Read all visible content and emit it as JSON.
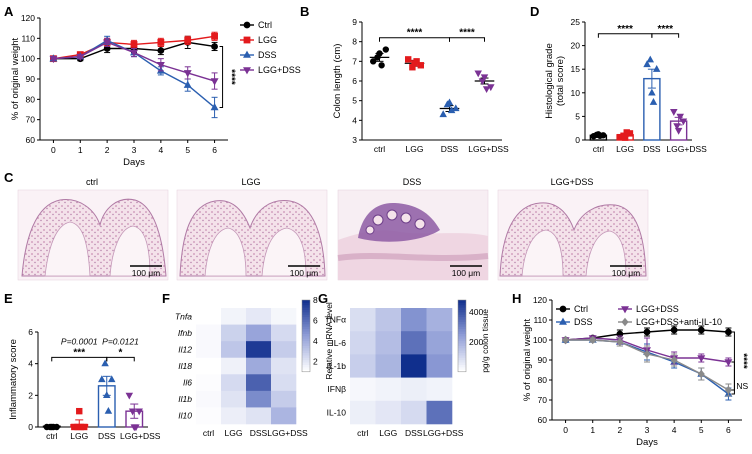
{
  "colors": {
    "Ctrl": "#000000",
    "LGG": "#e31a1c",
    "DSS": "#2b5fb0",
    "LGG+DSS": "#7b3294",
    "anti": "#8a8a8a",
    "heat_lo": "#ffffff",
    "heat_hi": "#0b2a8a",
    "tissue_pink": "#e9b9cf",
    "tissue_purple": "#8d5aa3",
    "tissue_bg": "#f7eef3"
  },
  "chart_data": [
    {
      "panel": "A",
      "type": "line",
      "ylabel": "% of original weight",
      "xlabel": "Days",
      "x": [
        0,
        1,
        2,
        3,
        4,
        5,
        6
      ],
      "xlim": [
        -0.5,
        6.5
      ],
      "ylim": [
        60,
        120
      ],
      "yticks": [
        60,
        70,
        80,
        90,
        100,
        110,
        120
      ],
      "xticks": [
        0,
        1,
        2,
        3,
        4,
        5,
        6
      ],
      "legend": [
        "Ctrl",
        "LGG",
        "DSS",
        "LGG+DSS"
      ],
      "series": [
        {
          "name": "Ctrl",
          "values": [
            100,
            100,
            105,
            105,
            104,
            108,
            106
          ],
          "err": [
            0.5,
            1,
            2,
            2,
            2,
            3,
            2
          ],
          "marker": "circle"
        },
        {
          "name": "LGG",
          "values": [
            100,
            102,
            108,
            107,
            108,
            109,
            111
          ],
          "err": [
            0.5,
            1,
            2,
            2,
            2,
            2,
            2
          ],
          "marker": "square"
        },
        {
          "name": "DSS",
          "values": [
            100,
            101,
            109,
            103,
            94,
            87,
            76
          ],
          "err": [
            0.5,
            1,
            2,
            2,
            2,
            3,
            5
          ],
          "marker": "triangle"
        },
        {
          "name": "LGG+DSS",
          "values": [
            100,
            101,
            108,
            103,
            97,
            93,
            89
          ],
          "err": [
            0.5,
            1,
            2,
            2,
            3,
            3,
            4
          ],
          "marker": "invtriangle"
        }
      ],
      "significance": "****"
    },
    {
      "panel": "B",
      "type": "scatter",
      "ylabel": "Colon length (cm)",
      "ylim": [
        3,
        9
      ],
      "yticks": [
        3,
        4,
        5,
        6,
        7,
        8,
        9
      ],
      "categories": [
        "ctrl",
        "LGG",
        "DSS",
        "LGG+DSS"
      ],
      "groups": [
        {
          "name": "ctrl",
          "mean": 7.2,
          "sem": 0.2,
          "points": [
            7.0,
            7.6,
            7.2,
            6.8,
            7.4
          ],
          "marker": "circle"
        },
        {
          "name": "LGG",
          "mean": 6.9,
          "sem": 0.15,
          "points": [
            7.1,
            6.8,
            6.7,
            7.0,
            6.9
          ],
          "marker": "square"
        },
        {
          "name": "DSS",
          "mean": 4.6,
          "sem": 0.15,
          "points": [
            4.3,
            4.6,
            4.8,
            4.5,
            4.9
          ],
          "marker": "triangle"
        },
        {
          "name": "LGG+DSS",
          "mean": 6.0,
          "sem": 0.15,
          "points": [
            6.4,
            5.7,
            6.0,
            5.6,
            6.2
          ],
          "marker": "invtriangle"
        }
      ],
      "brackets": [
        {
          "from": 0,
          "to": 2,
          "label": "****"
        },
        {
          "from": 2,
          "to": 3,
          "label": "****"
        }
      ]
    },
    {
      "panel": "D",
      "type": "bar",
      "ylabel": "Histological grade",
      "ylabel2": "(total score)",
      "ylim": [
        0,
        25
      ],
      "yticks": [
        0,
        5,
        10,
        15,
        20,
        25
      ],
      "categories": [
        "ctrl",
        "LGG",
        "DSS",
        "LGG+DSS"
      ],
      "groups": [
        {
          "name": "ctrl",
          "mean": 1.0,
          "sem": 0.2,
          "points": [
            0.8,
            1.0,
            1.1,
            0.9,
            1.2
          ],
          "marker": "circle"
        },
        {
          "name": "LGG",
          "mean": 1.1,
          "sem": 0.3,
          "points": [
            0.6,
            1.4,
            0.9,
            1.6,
            0.5
          ],
          "marker": "square"
        },
        {
          "name": "DSS",
          "mean": 13.0,
          "sem": 2.0,
          "points": [
            16,
            15,
            17,
            8,
            10
          ],
          "marker": "triangle"
        },
        {
          "name": "LGG+DSS",
          "mean": 4.0,
          "sem": 0.8,
          "points": [
            6,
            4,
            3,
            5,
            2
          ],
          "marker": "invtriangle"
        }
      ],
      "brackets": [
        {
          "from": 0,
          "to": 2,
          "label": "****"
        },
        {
          "from": 2,
          "to": 3,
          "label": "****"
        }
      ]
    },
    {
      "panel": "E",
      "type": "bar",
      "ylabel": "Inflammatory score",
      "ylim": [
        0,
        6
      ],
      "yticks": [
        0,
        2,
        4,
        6
      ],
      "categories": [
        "ctrl",
        "LGG",
        "DSS",
        "LGG+DSS"
      ],
      "groups": [
        {
          "name": "ctrl",
          "mean": 0.05,
          "sem": 0.05,
          "points": [
            0,
            0,
            0,
            0,
            0
          ],
          "marker": "circle"
        },
        {
          "name": "LGG",
          "mean": 0.15,
          "sem": 0.3,
          "points": [
            0,
            0,
            0,
            0,
            1
          ],
          "marker": "square"
        },
        {
          "name": "DSS",
          "mean": 2.6,
          "sem": 0.6,
          "points": [
            3,
            3,
            4,
            1,
            2
          ],
          "marker": "triangle"
        },
        {
          "name": "LGG+DSS",
          "mean": 1.0,
          "sem": 0.45,
          "points": [
            2,
            1,
            1,
            0,
            0
          ],
          "marker": "invtriangle"
        }
      ],
      "brackets": [
        {
          "from": 0,
          "to": 2,
          "label": "***"
        },
        {
          "from": 2,
          "to": 3,
          "label": "*"
        }
      ],
      "pvalues": [
        "P=0.0001",
        "P=0.0121"
      ]
    },
    {
      "panel": "F",
      "type": "heatmap",
      "rows": [
        "Tnfa",
        "Ifnb",
        "Il12",
        "Il18",
        "Il6",
        "Il1b",
        "Il10"
      ],
      "columns": [
        "ctrl",
        "LGG",
        "DSS",
        "LGG+DSS"
      ],
      "values": [
        [
          1.0,
          1.4,
          1.8,
          1.3
        ],
        [
          1.2,
          2.6,
          4.2,
          2.3
        ],
        [
          1.2,
          3.0,
          7.5,
          2.8
        ],
        [
          1.0,
          1.5,
          4.0,
          2.0
        ],
        [
          1.1,
          2.3,
          6.3,
          2.2
        ],
        [
          1.2,
          2.0,
          5.0,
          2.8
        ],
        [
          1.1,
          1.6,
          2.0,
          3.6
        ]
      ],
      "colorbar": {
        "label": "Relative mRNA level",
        "min": 1,
        "max": 8,
        "ticks": [
          2,
          4,
          6,
          8
        ]
      }
    },
    {
      "panel": "G",
      "type": "heatmap",
      "rows": [
        "TNFα",
        "IL-6",
        "IL-1b",
        "IFNβ",
        "IL-10"
      ],
      "columns": [
        "ctrl",
        "LGG",
        "DSS",
        "LGG+DSS"
      ],
      "values": [
        [
          80,
          140,
          260,
          190
        ],
        [
          100,
          160,
          330,
          220
        ],
        [
          120,
          180,
          470,
          250
        ],
        [
          20,
          30,
          40,
          30
        ],
        [
          40,
          60,
          90,
          330
        ]
      ],
      "colorbar": {
        "label": "pg/g colon tissue",
        "min": 0,
        "max": 480,
        "ticks": [
          200,
          400
        ]
      }
    },
    {
      "panel": "H",
      "type": "line",
      "ylabel": "% of original weight",
      "xlabel": "Days",
      "x": [
        0,
        1,
        2,
        3,
        4,
        5,
        6
      ],
      "xlim": [
        -0.5,
        6.5
      ],
      "ylim": [
        60,
        120
      ],
      "yticks": [
        60,
        70,
        80,
        90,
        100,
        110,
        120
      ],
      "xticks": [
        0,
        1,
        2,
        3,
        4,
        5,
        6
      ],
      "legend": [
        "Ctrl",
        "DSS",
        "LGG+DSS",
        "LGG+DSS+anti-IL-10"
      ],
      "series": [
        {
          "name": "Ctrl",
          "values": [
            100,
            101,
            103,
            104,
            105,
            105,
            104
          ],
          "err": [
            0.5,
            1,
            2,
            2,
            2,
            2,
            2
          ],
          "marker": "circle"
        },
        {
          "name": "DSS",
          "values": [
            100,
            100,
            99,
            94,
            89,
            83,
            73
          ],
          "err": [
            0.5,
            1,
            2,
            4,
            3,
            3,
            3
          ],
          "marker": "triangle"
        },
        {
          "name": "LGG+DSS",
          "values": [
            100,
            101,
            100,
            95,
            91,
            91,
            89
          ],
          "err": [
            0.5,
            1,
            2,
            6,
            3,
            2,
            2
          ],
          "marker": "invtriangle"
        },
        {
          "name": "LGG+DSS+anti-IL-10",
          "values": [
            100,
            100,
            99,
            93,
            90,
            83,
            75
          ],
          "err": [
            0.5,
            1,
            2,
            4,
            3,
            3,
            3
          ],
          "marker": "diamond"
        }
      ],
      "significance": [
        "****",
        "NS"
      ]
    }
  ],
  "panel_labels": [
    "A",
    "B",
    "C",
    "D",
    "E",
    "F",
    "G",
    "H"
  ],
  "histology": {
    "panel": "C",
    "images": [
      {
        "label": "ctrl",
        "scalebar": "100 μm"
      },
      {
        "label": "LGG",
        "scalebar": "100 μm"
      },
      {
        "label": "DSS",
        "scalebar": "100 μm"
      },
      {
        "label": "LGG+DSS",
        "scalebar": "100 μm"
      }
    ]
  }
}
